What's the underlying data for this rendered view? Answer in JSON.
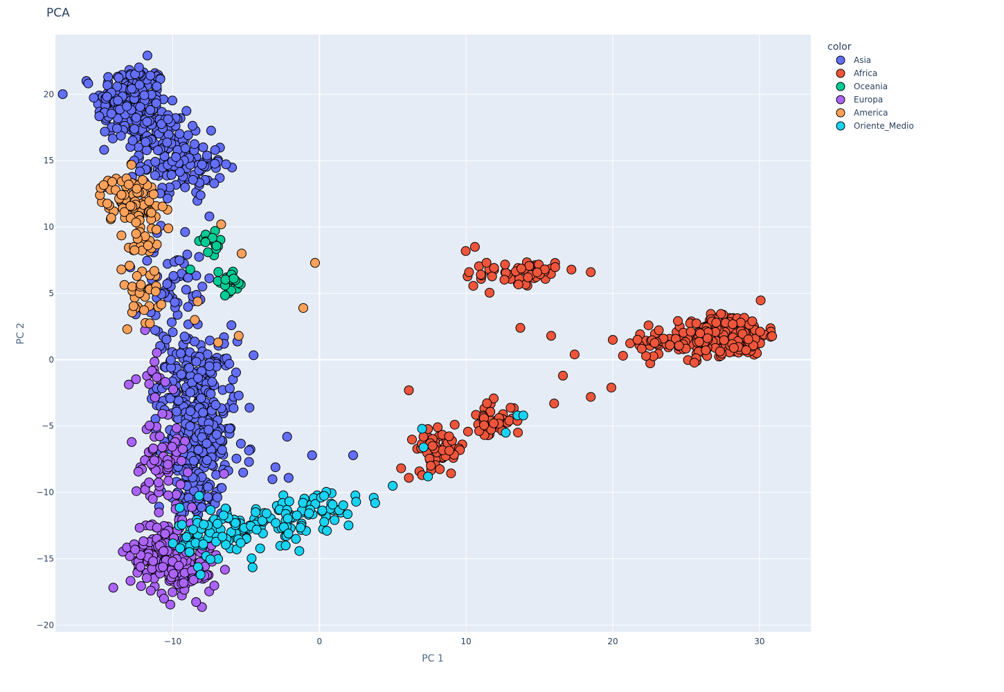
{
  "chart_data": {
    "type": "scatter",
    "title": "PCA",
    "xlabel": "PC 1",
    "ylabel": "PC 2",
    "xlim": [
      -18,
      33.5
    ],
    "ylim": [
      -20.5,
      24.5
    ],
    "x_ticks": [
      -10,
      0,
      10,
      20,
      30
    ],
    "y_ticks": [
      -20,
      -15,
      -10,
      -5,
      0,
      5,
      10,
      15,
      20
    ],
    "x_tick_labels": [
      "−10",
      "0",
      "10",
      "20",
      "30"
    ],
    "y_tick_labels": [
      "−20",
      "−15",
      "−10",
      "−5",
      "0",
      "5",
      "10",
      "15",
      "20"
    ],
    "grid": true,
    "legend": {
      "title": "color",
      "placement": "right"
    },
    "marker": {
      "edge_color": "#000000"
    },
    "series": [
      {
        "name": "Asia",
        "color": "#636efa",
        "clusters": [
          {
            "cx": -12.8,
            "cy": 19.3,
            "sx": 1.2,
            "sy": 1.5,
            "n": 230
          },
          {
            "cx": -9.3,
            "cy": 14.7,
            "sx": 1.4,
            "sy": 1.1,
            "n": 110
          },
          {
            "cx": -11.0,
            "cy": 16.8,
            "sx": 1.0,
            "sy": 1.0,
            "n": 60
          },
          {
            "cx": -8.4,
            "cy": -1.8,
            "sx": 1.3,
            "sy": 1.6,
            "n": 160
          },
          {
            "cx": -8.3,
            "cy": -6.5,
            "sx": 1.2,
            "sy": 1.8,
            "n": 170
          },
          {
            "cx": -8.6,
            "cy": -10.5,
            "sx": 1.0,
            "sy": 1.2,
            "n": 70
          },
          {
            "cx": -10.6,
            "cy": 4.5,
            "sx": 0.9,
            "sy": 2.5,
            "n": 40
          },
          {
            "cx": -9.2,
            "cy": 6.5,
            "sx": 1.0,
            "sy": 3.0,
            "n": 25
          }
        ],
        "points": [
          [
            -5.5,
            -2.7
          ],
          [
            -2.2,
            -5.8
          ],
          [
            -0.5,
            -7.2
          ],
          [
            2.3,
            -7.2
          ],
          [
            -2.1,
            -8.9
          ],
          [
            -3.0,
            -8.1
          ],
          [
            -4.8,
            -7.7
          ],
          [
            -7.5,
            10.8
          ],
          [
            -8.1,
            12.4
          ],
          [
            -6.0,
            2.6
          ],
          [
            -6.5,
            1.2
          ],
          [
            -3.2,
            -9.0
          ],
          [
            -5.2,
            -8.5
          ]
        ]
      },
      {
        "name": "Africa",
        "color": "#ef553b",
        "clusters": [
          {
            "cx": 28.1,
            "cy": 1.9,
            "sx": 1.2,
            "sy": 0.75,
            "n": 280
          },
          {
            "cx": 25.2,
            "cy": 1.4,
            "sx": 1.3,
            "sy": 0.7,
            "n": 60
          },
          {
            "cx": 14.3,
            "cy": 6.6,
            "sx": 0.9,
            "sy": 0.45,
            "n": 45
          },
          {
            "cx": 11.2,
            "cy": 6.9,
            "sx": 0.6,
            "sy": 0.8,
            "n": 14
          },
          {
            "cx": 8.3,
            "cy": -6.7,
            "sx": 0.85,
            "sy": 0.7,
            "n": 55
          },
          {
            "cx": 11.7,
            "cy": -4.6,
            "sx": 0.8,
            "sy": 0.7,
            "n": 45
          },
          {
            "cx": 22.3,
            "cy": 1.2,
            "sx": 0.8,
            "sy": 0.6,
            "n": 12
          }
        ],
        "points": [
          [
            13.7,
            2.4
          ],
          [
            15.8,
            1.8
          ],
          [
            17.4,
            0.4
          ],
          [
            16.6,
            -1.2
          ],
          [
            16.0,
            -3.3
          ],
          [
            18.5,
            -2.8
          ],
          [
            19.9,
            -2.1
          ],
          [
            18.5,
            6.6
          ],
          [
            6.1,
            -2.3
          ],
          [
            6.1,
            -8.9
          ],
          [
            7.0,
            -8.7
          ],
          [
            10.6,
            8.5
          ],
          [
            10.2,
            6.6
          ],
          [
            20.0,
            1.5
          ],
          [
            20.7,
            0.3
          ]
        ]
      },
      {
        "name": "Oceania",
        "color": "#00cc96",
        "clusters": [
          {
            "cx": -7.2,
            "cy": 8.7,
            "sx": 0.45,
            "sy": 0.4,
            "n": 16
          },
          {
            "cx": -6.2,
            "cy": 5.9,
            "sx": 0.55,
            "sy": 0.45,
            "n": 22
          }
        ],
        "points": [
          [
            -8.8,
            6.8
          ],
          [
            -7.6,
            8.1
          ]
        ]
      },
      {
        "name": "Europa",
        "color": "#ab63fa",
        "clusters": [
          {
            "cx": -10.5,
            "cy": -14.6,
            "sx": 1.2,
            "sy": 1.4,
            "n": 170
          },
          {
            "cx": -9.0,
            "cy": -15.8,
            "sx": 1.0,
            "sy": 1.0,
            "n": 70
          },
          {
            "cx": -10.9,
            "cy": -7.5,
            "sx": 0.9,
            "sy": 1.4,
            "n": 55
          },
          {
            "cx": -11.2,
            "cy": -1.5,
            "sx": 0.6,
            "sy": 1.5,
            "n": 18
          }
        ],
        "points": [
          [
            -6.5,
            -8.6
          ],
          [
            -11.5,
            -17.4
          ],
          [
            -12.2,
            -15.6
          ],
          [
            -12.8,
            -6.2
          ]
        ]
      },
      {
        "name": "America",
        "color": "#ffa15a",
        "clusters": [
          {
            "cx": -12.9,
            "cy": 12.1,
            "sx": 1.0,
            "sy": 0.9,
            "n": 85
          },
          {
            "cx": -12.2,
            "cy": 9.0,
            "sx": 0.7,
            "sy": 1.0,
            "n": 25
          },
          {
            "cx": -11.9,
            "cy": 4.6,
            "sx": 0.7,
            "sy": 1.6,
            "n": 28
          }
        ],
        "points": [
          [
            -0.3,
            7.3
          ],
          [
            -1.1,
            3.9
          ],
          [
            -5.3,
            8.0
          ],
          [
            -5.5,
            1.8
          ],
          [
            -6.7,
            10.2
          ],
          [
            -8.3,
            4.4
          ],
          [
            -8.5,
            3.0
          ],
          [
            -6.9,
            1.3
          ],
          [
            -10.3,
            9.9
          ],
          [
            -13.5,
            6.8
          ],
          [
            -13.1,
            2.3
          ]
        ]
      },
      {
        "name": "Oriente_Medio",
        "color": "#19d3f3",
        "clusters": [
          {
            "cx": -6.5,
            "cy": -13.0,
            "sx": 1.5,
            "sy": 1.0,
            "n": 100
          },
          {
            "cx": -1.5,
            "cy": -11.8,
            "sx": 1.5,
            "sy": 0.9,
            "n": 55
          },
          {
            "cx": 0.5,
            "cy": -10.8,
            "sx": 0.8,
            "sy": 0.5,
            "n": 18
          }
        ],
        "points": [
          [
            2.5,
            -10.7
          ],
          [
            3.7,
            -10.4
          ],
          [
            3.8,
            -10.8
          ],
          [
            5.0,
            -9.5
          ],
          [
            7.0,
            -5.2
          ],
          [
            7.4,
            -8.8
          ],
          [
            7.1,
            -6.6
          ],
          [
            12.7,
            -5.5
          ],
          [
            13.5,
            -4.2
          ],
          [
            13.9,
            -4.2
          ],
          [
            -1.6,
            -13.5
          ],
          [
            -2.3,
            -14.0
          ],
          [
            -9.5,
            -14.2
          ],
          [
            -8.1,
            -16.2
          ]
        ]
      }
    ]
  }
}
